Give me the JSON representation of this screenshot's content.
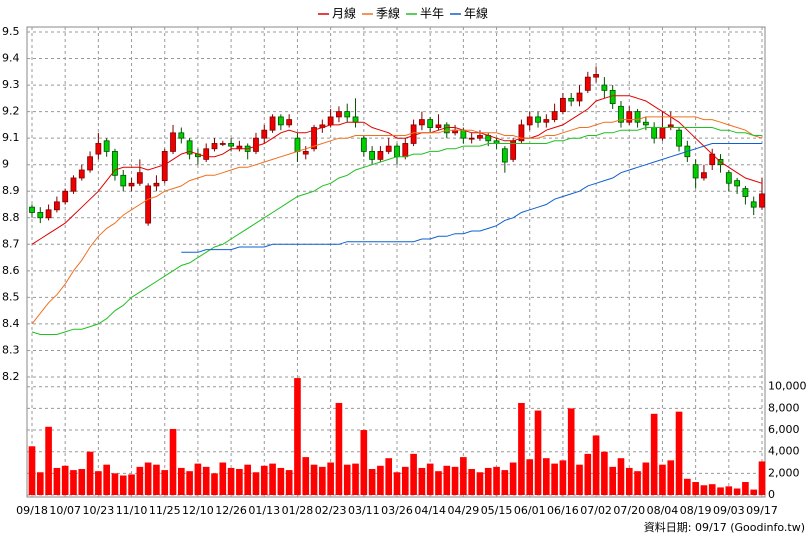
{
  "chart_data": {
    "type": "candlestick",
    "categories": [
      "09/18",
      null,
      null,
      null,
      "10/07",
      null,
      null,
      null,
      "10/23",
      null,
      null,
      null,
      "11/10",
      null,
      null,
      null,
      "11/25",
      null,
      null,
      null,
      "12/10",
      null,
      null,
      null,
      "12/26",
      null,
      null,
      null,
      "01/13",
      null,
      null,
      null,
      "01/28",
      null,
      null,
      null,
      "02/23",
      null,
      null,
      null,
      "03/11",
      null,
      null,
      null,
      "03/26",
      null,
      null,
      null,
      "04/14",
      null,
      null,
      null,
      "04/29",
      null,
      null,
      null,
      "05/15",
      null,
      null,
      null,
      "06/01",
      null,
      null,
      null,
      "06/16",
      null,
      null,
      null,
      "07/02",
      null,
      null,
      null,
      "07/20",
      null,
      null,
      null,
      "08/04",
      null,
      null,
      null,
      "08/19",
      null,
      null,
      null,
      "09/03",
      null,
      null,
      null,
      "09/17"
    ],
    "open": [
      8.84,
      8.82,
      8.8,
      8.83,
      8.86,
      8.9,
      8.95,
      8.98,
      9.04,
      9.09,
      9.05,
      8.96,
      8.92,
      8.93,
      8.78,
      8.92,
      8.94,
      9.05,
      9.12,
      9.09,
      9.04,
      9.02,
      9.06,
      9.08,
      9.08,
      9.06,
      9.07,
      9.05,
      9.1,
      9.13,
      9.18,
      9.15,
      9.1,
      9.04,
      9.06,
      9.14,
      9.15,
      9.18,
      9.2,
      9.18,
      9.1,
      9.05,
      9.02,
      9.05,
      9.07,
      9.03,
      9.08,
      9.15,
      9.17,
      9.14,
      9.15,
      9.12,
      9.13,
      9.1,
      9.1,
      9.11,
      9.09,
      9.06,
      9.02,
      9.09,
      9.15,
      9.18,
      9.16,
      9.17,
      9.2,
      9.25,
      9.24,
      9.28,
      9.33,
      9.3,
      9.28,
      9.22,
      9.16,
      9.2,
      9.16,
      9.14,
      9.1,
      9.14,
      9.13,
      9.07,
      9.0,
      8.95,
      9.0,
      9.02,
      8.97,
      8.94,
      8.91,
      8.86,
      8.84
    ],
    "high": [
      8.85,
      8.84,
      8.85,
      8.88,
      8.91,
      8.96,
      9.0,
      9.05,
      9.12,
      9.1,
      9.06,
      8.98,
      8.95,
      9.02,
      8.93,
      8.96,
      9.06,
      9.15,
      9.14,
      9.1,
      9.06,
      9.08,
      9.1,
      9.09,
      9.1,
      9.09,
      9.08,
      9.12,
      9.15,
      9.19,
      9.19,
      9.19,
      9.12,
      9.07,
      9.15,
      9.17,
      9.21,
      9.22,
      9.23,
      9.25,
      9.11,
      9.07,
      9.07,
      9.1,
      9.08,
      9.1,
      9.17,
      9.2,
      9.18,
      9.19,
      9.16,
      9.15,
      9.14,
      9.12,
      9.13,
      9.12,
      9.1,
      9.07,
      9.1,
      9.17,
      9.2,
      9.2,
      9.19,
      9.23,
      9.27,
      9.27,
      9.3,
      9.35,
      9.37,
      9.33,
      9.3,
      9.24,
      9.22,
      9.21,
      9.18,
      9.16,
      9.2,
      9.2,
      9.14,
      9.09,
      9.02,
      9.0,
      9.06,
      9.04,
      8.98,
      8.95,
      8.92,
      8.88,
      8.95
    ],
    "low": [
      8.8,
      8.78,
      8.79,
      8.82,
      8.85,
      8.89,
      8.94,
      8.97,
      9.02,
      9.03,
      8.94,
      8.9,
      8.9,
      8.92,
      8.77,
      8.9,
      8.93,
      9.04,
      9.08,
      9.02,
      9.0,
      9.01,
      9.05,
      9.07,
      9.05,
      9.05,
      9.02,
      9.04,
      9.08,
      9.12,
      9.13,
      9.14,
      9.01,
      9.02,
      9.05,
      9.12,
      9.14,
      9.16,
      9.16,
      9.14,
      9.03,
      9.0,
      9.01,
      9.04,
      9.0,
      9.02,
      9.07,
      9.13,
      9.12,
      9.13,
      9.1,
      9.11,
      9.08,
      9.08,
      9.09,
      9.07,
      9.06,
      8.97,
      9.01,
      9.08,
      9.13,
      9.14,
      9.14,
      9.16,
      9.19,
      9.22,
      9.22,
      9.27,
      9.31,
      9.25,
      9.21,
      9.14,
      9.15,
      9.14,
      9.13,
      9.08,
      9.09,
      9.13,
      9.05,
      9.01,
      8.91,
      8.94,
      8.98,
      8.97,
      8.9,
      8.89,
      8.85,
      8.81,
      8.83
    ],
    "close": [
      8.82,
      8.8,
      8.83,
      8.86,
      8.9,
      8.95,
      8.98,
      9.03,
      9.08,
      9.05,
      8.96,
      8.92,
      8.93,
      8.97,
      8.92,
      8.93,
      9.05,
      9.12,
      9.1,
      9.04,
      9.03,
      9.06,
      9.08,
      9.08,
      9.07,
      9.07,
      9.05,
      9.1,
      9.13,
      9.18,
      9.15,
      9.17,
      9.05,
      9.05,
      9.14,
      9.15,
      9.18,
      9.2,
      9.18,
      9.16,
      9.05,
      9.02,
      9.05,
      9.07,
      9.03,
      9.08,
      9.15,
      9.17,
      9.14,
      9.15,
      9.12,
      9.13,
      9.1,
      9.1,
      9.11,
      9.09,
      9.08,
      9.01,
      9.09,
      9.15,
      9.18,
      9.16,
      9.17,
      9.2,
      9.25,
      9.24,
      9.27,
      9.33,
      9.34,
      9.28,
      9.23,
      9.16,
      9.2,
      9.16,
      9.15,
      9.1,
      9.14,
      9.15,
      9.07,
      9.03,
      8.95,
      8.97,
      9.04,
      9.0,
      8.93,
      8.92,
      8.88,
      8.84,
      8.89
    ],
    "up_color": "#ee0000",
    "up_edge": "#800000",
    "down_color": "#00d000",
    "down_edge": "#005000",
    "ylim": [
      8.2,
      9.5
    ],
    "yticks": [
      8.2,
      8.3,
      8.4,
      8.5,
      8.6,
      8.7,
      8.8,
      8.9,
      9,
      9.1,
      9.2,
      9.3,
      9.4,
      9.5
    ],
    "grid": true,
    "legend": "top",
    "series": [
      {
        "name": "月線",
        "color": "#e00000",
        "values": [
          8.7,
          8.72,
          8.74,
          8.76,
          8.78,
          8.81,
          8.84,
          8.87,
          8.9,
          8.94,
          8.98,
          8.99,
          8.99,
          8.99,
          8.98,
          8.99,
          9.0,
          9.02,
          9.04,
          9.05,
          9.04,
          9.03,
          9.03,
          9.04,
          9.06,
          9.06,
          9.06,
          9.07,
          9.08,
          9.1,
          9.12,
          9.13,
          9.12,
          9.12,
          9.13,
          9.14,
          9.15,
          9.15,
          9.16,
          9.16,
          9.16,
          9.14,
          9.13,
          9.12,
          9.1,
          9.1,
          9.11,
          9.12,
          9.12,
          9.13,
          9.14,
          9.14,
          9.13,
          9.12,
          9.12,
          9.11,
          9.1,
          9.09,
          9.09,
          9.1,
          9.1,
          9.11,
          9.13,
          9.14,
          9.15,
          9.17,
          9.19,
          9.21,
          9.24,
          9.25,
          9.26,
          9.26,
          9.26,
          9.25,
          9.24,
          9.22,
          9.2,
          9.18,
          9.16,
          9.13,
          9.1,
          9.07,
          9.04,
          9.01,
          8.99,
          8.97,
          8.95,
          8.94,
          8.93
        ]
      },
      {
        "name": "季線",
        "color": "#f07020",
        "values": [
          8.4,
          8.44,
          8.48,
          8.51,
          8.55,
          8.6,
          8.64,
          8.69,
          8.73,
          8.76,
          8.78,
          8.81,
          8.83,
          8.85,
          8.87,
          8.88,
          8.9,
          8.91,
          8.92,
          8.94,
          8.95,
          8.96,
          8.96,
          8.97,
          8.98,
          8.99,
          8.99,
          9.0,
          9.01,
          9.02,
          9.03,
          9.04,
          9.05,
          9.06,
          9.07,
          9.08,
          9.09,
          9.1,
          9.1,
          9.11,
          9.11,
          9.11,
          9.11,
          9.11,
          9.11,
          9.11,
          9.12,
          9.12,
          9.12,
          9.12,
          9.13,
          9.13,
          9.13,
          9.13,
          9.12,
          9.12,
          9.12,
          9.11,
          9.11,
          9.1,
          9.1,
          9.1,
          9.11,
          9.11,
          9.12,
          9.13,
          9.14,
          9.14,
          9.15,
          9.16,
          9.16,
          9.17,
          9.17,
          9.17,
          9.18,
          9.18,
          9.18,
          9.18,
          9.18,
          9.18,
          9.18,
          9.17,
          9.17,
          9.16,
          9.15,
          9.14,
          9.13,
          9.11,
          9.1
        ]
      },
      {
        "name": "半年",
        "color": "#20c020",
        "values": [
          8.37,
          8.36,
          8.36,
          8.36,
          8.37,
          8.38,
          8.38,
          8.39,
          8.4,
          8.42,
          8.45,
          8.47,
          8.5,
          8.52,
          8.54,
          8.56,
          8.58,
          8.6,
          8.62,
          8.63,
          8.65,
          8.67,
          8.69,
          8.7,
          8.72,
          8.74,
          8.76,
          8.78,
          8.8,
          8.82,
          8.84,
          8.86,
          8.88,
          8.89,
          8.9,
          8.92,
          8.93,
          8.95,
          8.96,
          8.98,
          8.99,
          9.0,
          9.01,
          9.02,
          9.03,
          9.03,
          9.04,
          9.04,
          9.05,
          9.05,
          9.06,
          9.06,
          9.07,
          9.07,
          9.07,
          9.08,
          9.08,
          9.08,
          9.08,
          9.08,
          9.08,
          9.08,
          9.08,
          9.09,
          9.09,
          9.1,
          9.1,
          9.11,
          9.11,
          9.12,
          9.12,
          9.13,
          9.13,
          9.13,
          9.14,
          9.14,
          9.14,
          9.14,
          9.14,
          9.14,
          9.14,
          9.14,
          9.14,
          9.13,
          9.13,
          9.12,
          9.12,
          9.11,
          9.11
        ]
      },
      {
        "name": "年線",
        "color": "#1060d0",
        "values": [
          null,
          null,
          null,
          null,
          null,
          null,
          null,
          null,
          null,
          null,
          null,
          null,
          null,
          null,
          null,
          null,
          null,
          null,
          8.67,
          8.67,
          8.67,
          8.68,
          8.68,
          8.68,
          8.68,
          8.69,
          8.69,
          8.69,
          8.69,
          8.7,
          8.7,
          8.7,
          8.7,
          8.7,
          8.7,
          8.7,
          8.7,
          8.7,
          8.71,
          8.71,
          8.71,
          8.71,
          8.71,
          8.71,
          8.71,
          8.71,
          8.71,
          8.72,
          8.72,
          8.73,
          8.73,
          8.74,
          8.74,
          8.75,
          8.75,
          8.76,
          8.77,
          8.79,
          8.8,
          8.82,
          8.83,
          8.84,
          8.85,
          8.87,
          8.88,
          8.89,
          8.9,
          8.92,
          8.93,
          8.94,
          8.95,
          8.97,
          8.98,
          8.99,
          9.0,
          9.01,
          9.02,
          9.03,
          9.04,
          9.05,
          9.06,
          9.07,
          9.08,
          9.08,
          9.08,
          9.08,
          9.08,
          9.08,
          9.08
        ]
      }
    ],
    "volume": {
      "color": "#ff0000",
      "values": [
        4500,
        2100,
        6300,
        2500,
        2700,
        2300,
        2400,
        4000,
        2200,
        2800,
        2000,
        1800,
        1900,
        2600,
        3000,
        2800,
        2300,
        6100,
        2500,
        2200,
        2900,
        2600,
        2000,
        3000,
        2500,
        2400,
        2800,
        2100,
        2700,
        2900,
        2500,
        2300,
        10800,
        3500,
        2800,
        2600,
        3000,
        8500,
        2800,
        2900,
        6000,
        2400,
        2700,
        3400,
        2100,
        2600,
        3800,
        2500,
        2900,
        2200,
        2700,
        2600,
        3500,
        2400,
        2100,
        2500,
        2600,
        2300,
        3000,
        8500,
        3300,
        7800,
        3400,
        2900,
        3200,
        8000,
        2800,
        3800,
        5500,
        4000,
        2600,
        3400,
        2500,
        2200,
        3000,
        7500,
        2800,
        3200,
        7700,
        1500,
        1200,
        900,
        1000,
        700,
        800,
        600,
        1200,
        500,
        3100
      ],
      "ylim": [
        0,
        10900
      ],
      "yticks": [
        0,
        {
          "value": 2000,
          "label": "2,000"
        },
        {
          "value": 4000,
          "label": "4,000"
        },
        {
          "value": 6000,
          "label": "6,000"
        },
        {
          "value": 8000,
          "label": "8,000"
        },
        {
          "value": 10000,
          "label": "10,000"
        }
      ]
    },
    "footnote": "資料日期: 09/17 (Goodinfo.tw)"
  }
}
